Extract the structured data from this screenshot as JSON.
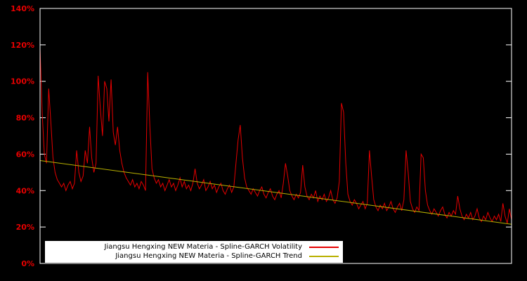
{
  "chart_data": {
    "type": "line",
    "title": "",
    "xlabel": "",
    "ylabel": "",
    "ylim": [
      0,
      140
    ],
    "grid": false,
    "legend_position": "bottom-center-inside",
    "y_ticks": [
      "0%",
      "20%",
      "40%",
      "60%",
      "80%",
      "100%",
      "120%",
      "140%"
    ],
    "y_tick_values": [
      0,
      20,
      40,
      60,
      80,
      100,
      120,
      140
    ],
    "colors": {
      "background": "#000000",
      "plot_border": "#ffffff",
      "tick_label": "#e60000",
      "legend_background": "#ffffff",
      "legend_text": "#000000"
    },
    "series": [
      {
        "name": "Jiangsu Hengxing NEW Materia - Spline-GARCH Volatility",
        "color": "#e60000",
        "values": [
          118,
          82,
          60,
          55,
          96,
          78,
          58,
          50,
          46,
          44,
          42,
          44,
          40,
          43,
          45,
          41,
          44,
          62,
          50,
          45,
          48,
          62,
          55,
          75,
          58,
          50,
          55,
          103,
          85,
          70,
          100,
          96,
          78,
          101,
          72,
          65,
          75,
          62,
          55,
          50,
          47,
          45,
          43,
          46,
          42,
          44,
          41,
          45,
          43,
          40,
          105,
          75,
          52,
          47,
          44,
          46,
          42,
          44,
          40,
          43,
          46,
          42,
          44,
          40,
          43,
          47,
          42,
          45,
          41,
          43,
          40,
          44,
          52,
          44,
          41,
          43,
          46,
          40,
          42,
          45,
          41,
          43,
          39,
          42,
          44,
          40,
          38,
          41,
          43,
          39,
          42,
          55,
          68,
          76,
          58,
          47,
          42,
          40,
          38,
          41,
          39,
          37,
          40,
          42,
          38,
          36,
          39,
          41,
          37,
          35,
          38,
          40,
          36,
          44,
          55,
          48,
          40,
          37,
          35,
          38,
          36,
          39,
          54,
          42,
          37,
          35,
          38,
          36,
          40,
          34,
          37,
          35,
          38,
          34,
          36,
          40,
          35,
          33,
          36,
          45,
          88,
          83,
          55,
          38,
          34,
          32,
          35,
          33,
          30,
          32,
          34,
          30,
          33,
          62,
          48,
          35,
          31,
          29,
          32,
          30,
          33,
          29,
          31,
          34,
          30,
          28,
          31,
          33,
          29,
          35,
          62,
          50,
          34,
          30,
          28,
          31,
          29,
          60,
          58,
          40,
          32,
          29,
          27,
          30,
          28,
          26,
          29,
          31,
          27,
          25,
          28,
          26,
          29,
          27,
          37,
          30,
          26,
          24,
          27,
          25,
          28,
          24,
          26,
          30,
          25,
          23,
          26,
          24,
          28,
          25,
          23,
          26,
          24,
          27,
          23,
          33,
          26,
          22,
          30,
          24
        ]
      },
      {
        "name": "Jiangsu Hengxing NEW Materia - Spline-GARCH Trend",
        "color": "#b8b000",
        "trend": {
          "start": 56.5,
          "end": 21.5
        }
      }
    ]
  }
}
